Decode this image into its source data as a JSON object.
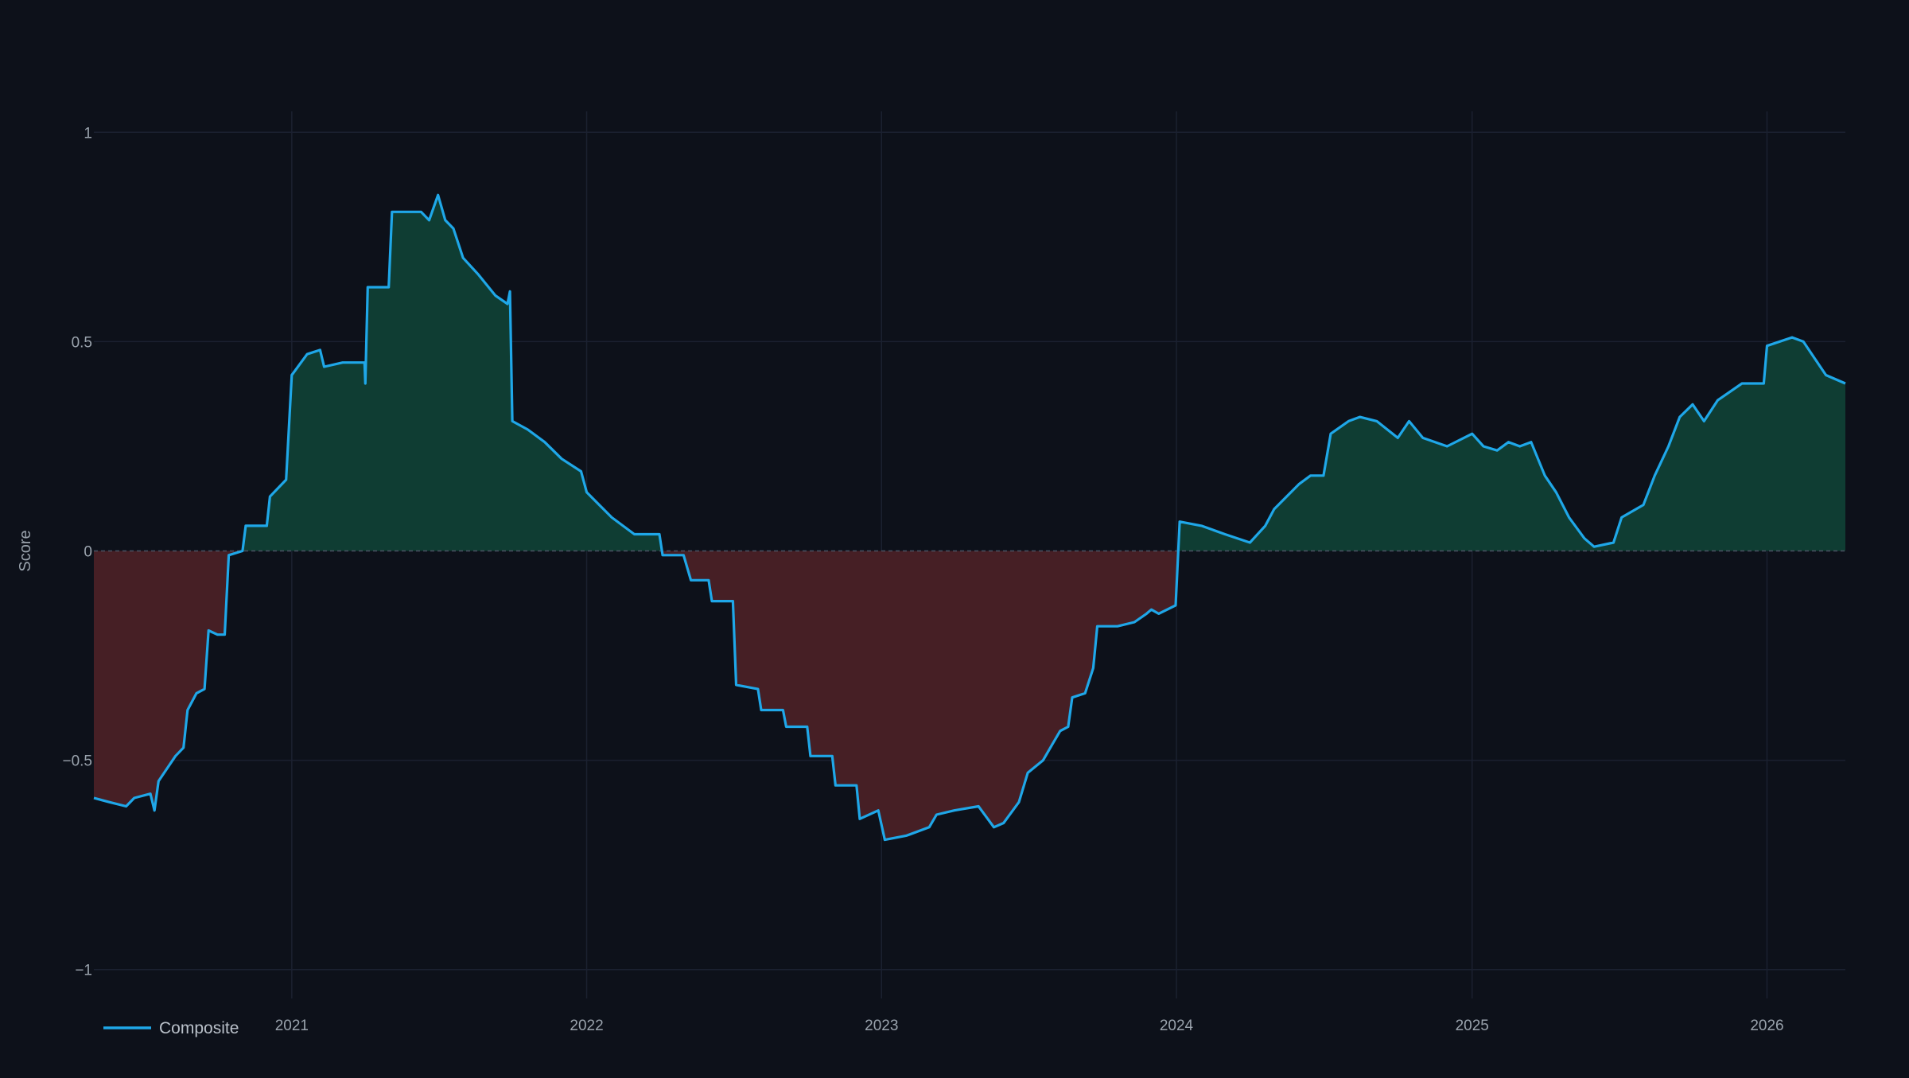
{
  "chart_data": {
    "type": "area",
    "title": "",
    "xlabel": "",
    "ylabel": "Score",
    "xlim": [
      "2020-05-01",
      "2026-04-08"
    ],
    "ylim": [
      -1.05,
      1.05
    ],
    "y_ticks": [
      1,
      0.5,
      0,
      -0.5,
      -1
    ],
    "y_tick_labels": [
      "1",
      "0.5",
      "0",
      "−0.5",
      "−1"
    ],
    "x_ticks": [
      "2021-01-01",
      "2022-01-01",
      "2023-01-01",
      "2024-01-01",
      "2025-01-01",
      "2026-01-01"
    ],
    "x_tick_labels": [
      "2021",
      "2022",
      "2023",
      "2024",
      "2025",
      "2026"
    ],
    "grid": true,
    "zero_line": "dashed",
    "legend_position": "bottom-left",
    "colors": {
      "background": "#0d111a",
      "line": "#1fa7e8",
      "positive_fill": "#0f3d33",
      "negative_fill": "#461f25",
      "grid": "#1b2130",
      "tick_text": "#9aa3ad"
    },
    "series": [
      {
        "name": "Composite",
        "points": [
          [
            "2020-05-01",
            -0.59
          ],
          [
            "2020-05-20",
            -0.6
          ],
          [
            "2020-06-10",
            -0.61
          ],
          [
            "2020-06-20",
            -0.59
          ],
          [
            "2020-07-10",
            -0.58
          ],
          [
            "2020-07-15",
            -0.62
          ],
          [
            "2020-07-20",
            -0.55
          ],
          [
            "2020-08-10",
            -0.49
          ],
          [
            "2020-08-20",
            -0.47
          ],
          [
            "2020-08-25",
            -0.38
          ],
          [
            "2020-09-05",
            -0.34
          ],
          [
            "2020-09-15",
            -0.33
          ],
          [
            "2020-09-20",
            -0.19
          ],
          [
            "2020-10-01",
            -0.2
          ],
          [
            "2020-10-10",
            -0.2
          ],
          [
            "2020-10-15",
            -0.01
          ],
          [
            "2020-11-01",
            0.0
          ],
          [
            "2020-11-05",
            0.06
          ],
          [
            "2020-12-01",
            0.06
          ],
          [
            "2020-12-05",
            0.13
          ],
          [
            "2020-12-25",
            0.17
          ],
          [
            "2021-01-01",
            0.42
          ],
          [
            "2021-01-20",
            0.47
          ],
          [
            "2021-02-05",
            0.48
          ],
          [
            "2021-02-10",
            0.44
          ],
          [
            "2021-03-05",
            0.45
          ],
          [
            "2021-04-01",
            0.45
          ],
          [
            "2021-04-02",
            0.4
          ],
          [
            "2021-04-05",
            0.63
          ],
          [
            "2021-05-01",
            0.63
          ],
          [
            "2021-05-05",
            0.81
          ],
          [
            "2021-06-10",
            0.81
          ],
          [
            "2021-06-20",
            0.79
          ],
          [
            "2021-07-01",
            0.85
          ],
          [
            "2021-07-10",
            0.79
          ],
          [
            "2021-07-20",
            0.77
          ],
          [
            "2021-08-01",
            0.7
          ],
          [
            "2021-08-20",
            0.66
          ],
          [
            "2021-09-10",
            0.61
          ],
          [
            "2021-09-25",
            0.59
          ],
          [
            "2021-09-28",
            0.62
          ],
          [
            "2021-10-01",
            0.31
          ],
          [
            "2021-10-20",
            0.29
          ],
          [
            "2021-11-10",
            0.26
          ],
          [
            "2021-12-01",
            0.22
          ],
          [
            "2021-12-25",
            0.19
          ],
          [
            "2022-01-01",
            0.14
          ],
          [
            "2022-02-01",
            0.08
          ],
          [
            "2022-03-01",
            0.04
          ],
          [
            "2022-04-01",
            0.04
          ],
          [
            "2022-04-05",
            -0.01
          ],
          [
            "2022-05-01",
            -0.01
          ],
          [
            "2022-05-10",
            -0.07
          ],
          [
            "2022-06-01",
            -0.07
          ],
          [
            "2022-06-05",
            -0.12
          ],
          [
            "2022-07-01",
            -0.12
          ],
          [
            "2022-07-05",
            -0.32
          ],
          [
            "2022-08-01",
            -0.33
          ],
          [
            "2022-08-05",
            -0.38
          ],
          [
            "2022-09-01",
            -0.38
          ],
          [
            "2022-09-05",
            -0.42
          ],
          [
            "2022-10-01",
            -0.42
          ],
          [
            "2022-10-05",
            -0.49
          ],
          [
            "2022-11-01",
            -0.49
          ],
          [
            "2022-11-05",
            -0.56
          ],
          [
            "2022-12-01",
            -0.56
          ],
          [
            "2022-12-05",
            -0.64
          ],
          [
            "2022-12-28",
            -0.62
          ],
          [
            "2023-01-05",
            -0.69
          ],
          [
            "2023-02-01",
            -0.68
          ],
          [
            "2023-03-01",
            -0.66
          ],
          [
            "2023-03-10",
            -0.63
          ],
          [
            "2023-04-01",
            -0.62
          ],
          [
            "2023-05-01",
            -0.61
          ],
          [
            "2023-05-20",
            -0.66
          ],
          [
            "2023-06-01",
            -0.65
          ],
          [
            "2023-06-20",
            -0.6
          ],
          [
            "2023-07-01",
            -0.53
          ],
          [
            "2023-07-20",
            -0.5
          ],
          [
            "2023-08-01",
            -0.46
          ],
          [
            "2023-08-10",
            -0.43
          ],
          [
            "2023-08-20",
            -0.42
          ],
          [
            "2023-08-25",
            -0.35
          ],
          [
            "2023-09-10",
            -0.34
          ],
          [
            "2023-09-20",
            -0.28
          ],
          [
            "2023-09-25",
            -0.18
          ],
          [
            "2023-10-20",
            -0.18
          ],
          [
            "2023-11-10",
            -0.17
          ],
          [
            "2023-11-25",
            -0.15
          ],
          [
            "2023-12-01",
            -0.14
          ],
          [
            "2023-12-10",
            -0.15
          ],
          [
            "2023-12-31",
            -0.13
          ],
          [
            "2024-01-05",
            0.07
          ],
          [
            "2024-02-01",
            0.06
          ],
          [
            "2024-03-01",
            0.04
          ],
          [
            "2024-04-01",
            0.02
          ],
          [
            "2024-04-20",
            0.06
          ],
          [
            "2024-05-01",
            0.1
          ],
          [
            "2024-06-01",
            0.16
          ],
          [
            "2024-06-15",
            0.18
          ],
          [
            "2024-07-01",
            0.18
          ],
          [
            "2024-07-10",
            0.28
          ],
          [
            "2024-08-01",
            0.31
          ],
          [
            "2024-08-15",
            0.32
          ],
          [
            "2024-09-05",
            0.31
          ],
          [
            "2024-10-01",
            0.27
          ],
          [
            "2024-10-15",
            0.31
          ],
          [
            "2024-11-01",
            0.27
          ],
          [
            "2024-12-01",
            0.25
          ],
          [
            "2025-01-01",
            0.28
          ],
          [
            "2025-01-15",
            0.25
          ],
          [
            "2025-02-01",
            0.24
          ],
          [
            "2025-02-15",
            0.26
          ],
          [
            "2025-03-01",
            0.25
          ],
          [
            "2025-03-15",
            0.26
          ],
          [
            "2025-04-01",
            0.18
          ],
          [
            "2025-04-15",
            0.14
          ],
          [
            "2025-05-01",
            0.08
          ],
          [
            "2025-05-20",
            0.03
          ],
          [
            "2025-06-01",
            0.01
          ],
          [
            "2025-06-25",
            0.02
          ],
          [
            "2025-07-05",
            0.08
          ],
          [
            "2025-08-01",
            0.11
          ],
          [
            "2025-08-15",
            0.18
          ],
          [
            "2025-09-01",
            0.25
          ],
          [
            "2025-09-15",
            0.32
          ],
          [
            "2025-10-01",
            0.35
          ],
          [
            "2025-10-15",
            0.31
          ],
          [
            "2025-11-01",
            0.36
          ],
          [
            "2025-12-01",
            0.4
          ],
          [
            "2025-12-28",
            0.4
          ],
          [
            "2026-01-01",
            0.49
          ],
          [
            "2026-02-01",
            0.51
          ],
          [
            "2026-02-15",
            0.5
          ],
          [
            "2026-03-01",
            0.46
          ],
          [
            "2026-03-15",
            0.42
          ],
          [
            "2026-04-08",
            0.4
          ]
        ]
      }
    ]
  }
}
